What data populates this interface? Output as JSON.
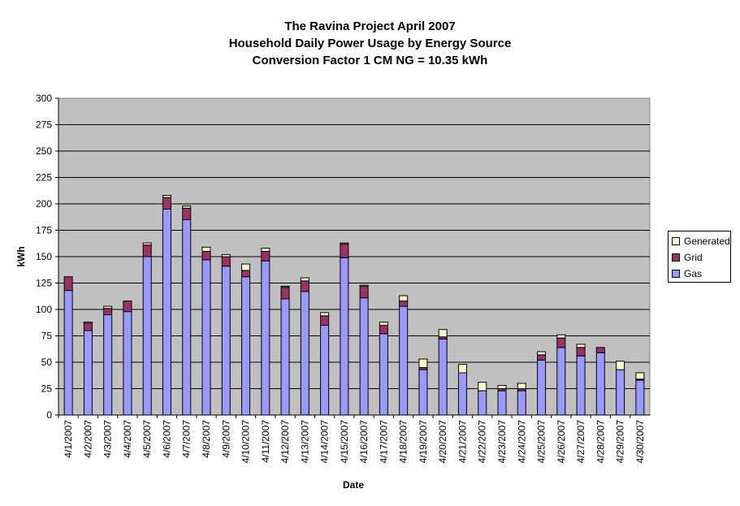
{
  "chart_data": {
    "type": "bar",
    "stacked": true,
    "title": [
      "The Ravina Project April 2007",
      "Household Daily Power Usage by Energy Source",
      "Conversion Factor 1 CM NG = 10.35 kWh"
    ],
    "xlabel": "Date",
    "ylabel": "kWh",
    "ylim": [
      0,
      300
    ],
    "yticks": [
      0,
      25,
      50,
      75,
      100,
      125,
      150,
      175,
      200,
      225,
      250,
      275,
      300
    ],
    "grid": true,
    "legend_position": "right",
    "categories": [
      "4/1/2007",
      "4/2/2007",
      "4/3/2007",
      "4/4/2007",
      "4/5/2007",
      "4/6/2007",
      "4/7/2007",
      "4/8/2007",
      "4/9/2007",
      "4/10/2007",
      "4/11/2007",
      "4/12/2007",
      "4/13/2007",
      "4/14/2007",
      "4/15/2007",
      "4/16/2007",
      "4/17/2007",
      "4/18/2007",
      "4/19/2007",
      "4/20/2007",
      "4/21/2007",
      "4/22/2007",
      "4/23/2007",
      "4/24/2007",
      "4/25/2007",
      "4/26/2007",
      "4/27/2007",
      "4/28/2007",
      "4/29/2007",
      "4/30/2007"
    ],
    "series": [
      {
        "name": "Gas",
        "color": "#9999ff",
        "values": [
          118,
          80,
          95,
          98,
          150,
          195,
          185,
          147,
          141,
          131,
          146,
          110,
          117,
          85,
          149,
          111,
          77,
          103,
          43,
          72,
          40,
          23,
          23,
          23,
          52,
          64,
          56,
          59,
          43,
          33
        ]
      },
      {
        "name": "Grid",
        "color": "#993366",
        "values": [
          13,
          7,
          6,
          10,
          11,
          11,
          11,
          8,
          9,
          6,
          9,
          11,
          10,
          9,
          13,
          11,
          8,
          5,
          2,
          2,
          0,
          0,
          2,
          2,
          5,
          9,
          8,
          5,
          0,
          1
        ]
      },
      {
        "name": "Generated",
        "color": "#ffffcc",
        "values": [
          0,
          1,
          2,
          0,
          2,
          2,
          2,
          4,
          2,
          6,
          3,
          1,
          3,
          3,
          1,
          1,
          3,
          5,
          8,
          7,
          8,
          8,
          3,
          5,
          3,
          3,
          3,
          0,
          8,
          6
        ]
      }
    ],
    "legend_order": [
      "Generated",
      "Grid",
      "Gas"
    ]
  }
}
